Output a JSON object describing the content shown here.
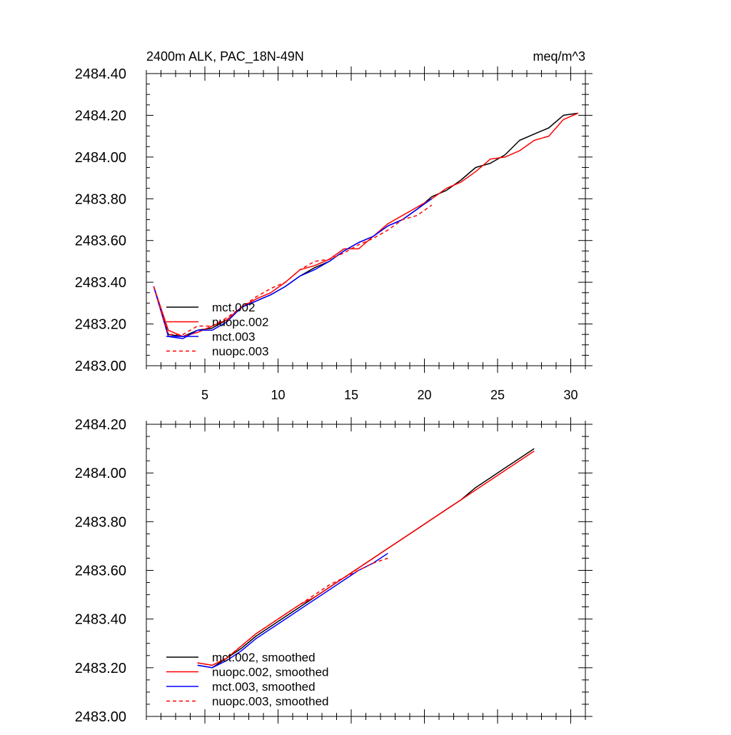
{
  "chart_data": [
    {
      "type": "line",
      "title": "2400m ALK, PAC_18N-49N",
      "units": "meq/m^3",
      "xlabel": "",
      "ylabel": "",
      "xlim": [
        1,
        31
      ],
      "ylim": [
        2483.0,
        2484.4
      ],
      "x_ticks": [
        5,
        10,
        15,
        20,
        25,
        30
      ],
      "y_ticks": [
        2483.0,
        2483.2,
        2483.4,
        2483.6,
        2483.8,
        2484.0,
        2484.2,
        2484.4
      ],
      "y_tick_labels": [
        "2483.00",
        "2483.20",
        "2483.40",
        "2483.60",
        "2483.80",
        "2484.00",
        "2484.20",
        "2484.40"
      ],
      "legend_position": "bottom-left",
      "series": [
        {
          "name": "mct.002",
          "color": "#000000",
          "dash": "solid",
          "x": [
            1.5,
            2.5,
            3.5,
            4.5,
            5.5,
            6.5,
            7.5,
            8.5,
            9.5,
            10.5,
            11.5,
            12.5,
            13.5,
            14.5,
            15.5,
            16.5,
            17.5,
            18.5,
            19.5,
            20.5,
            21.5,
            22.5,
            23.5,
            24.5,
            25.5,
            26.5,
            27.5,
            28.5,
            29.5,
            30.5
          ],
          "y": [
            2483.38,
            2483.15,
            2483.14,
            2483.17,
            2483.18,
            2483.22,
            2483.28,
            2483.31,
            2483.34,
            2483.38,
            2483.43,
            2483.47,
            2483.5,
            2483.55,
            2483.59,
            2483.62,
            2483.67,
            2483.7,
            2483.75,
            2483.81,
            2483.84,
            2483.89,
            2483.95,
            2483.97,
            2484.01,
            2484.08,
            2484.11,
            2484.14,
            2484.2,
            2484.21
          ]
        },
        {
          "name": "nuopc.002",
          "color": "#ff0000",
          "dash": "solid",
          "x": [
            1.5,
            2.5,
            3.5,
            4.5,
            5.5,
            6.5,
            7.5,
            8.5,
            9.5,
            10.5,
            11.5,
            12.5,
            13.5,
            14.5,
            15.5,
            16.5,
            17.5,
            18.5,
            19.5,
            20.5,
            21.5,
            22.5,
            23.5,
            24.5,
            25.5,
            26.5,
            27.5,
            28.5,
            29.5,
            30.5
          ],
          "y": [
            2483.38,
            2483.17,
            2483.14,
            2483.16,
            2483.19,
            2483.22,
            2483.28,
            2483.32,
            2483.35,
            2483.4,
            2483.46,
            2483.48,
            2483.51,
            2483.56,
            2483.56,
            2483.62,
            2483.68,
            2483.72,
            2483.76,
            2483.8,
            2483.85,
            2483.88,
            2483.93,
            2483.99,
            2484.0,
            2484.03,
            2484.08,
            2484.1,
            2484.18,
            2484.21
          ]
        },
        {
          "name": "mct.003",
          "color": "#0000ff",
          "dash": "solid",
          "x": [
            1.5,
            2.5,
            3.5,
            4.5,
            5.5,
            6.5,
            7.5,
            8.5,
            9.5,
            10.5,
            11.5,
            12.5,
            13.5,
            14.5,
            15.5,
            16.5,
            17.5,
            18.5,
            19.5,
            20.5
          ],
          "y": [
            2483.38,
            2483.14,
            2483.13,
            2483.17,
            2483.17,
            2483.21,
            2483.28,
            2483.31,
            2483.34,
            2483.38,
            2483.43,
            2483.46,
            2483.5,
            2483.55,
            2483.59,
            2483.62,
            2483.67,
            2483.7,
            2483.75,
            2483.8
          ]
        },
        {
          "name": "nuopc.003",
          "color": "#ff0000",
          "dash": "dashed",
          "x": [
            1.5,
            2.5,
            3.5,
            4.5,
            5.5,
            6.5,
            7.5,
            8.5,
            9.5,
            10.5,
            11.5,
            12.5,
            13.5,
            14.5,
            15.5,
            16.5,
            17.5,
            18.5,
            19.5,
            20.5
          ],
          "y": [
            2483.38,
            2483.15,
            2483.15,
            2483.19,
            2483.19,
            2483.23,
            2483.28,
            2483.33,
            2483.37,
            2483.4,
            2483.46,
            2483.5,
            2483.51,
            2483.54,
            2483.58,
            2483.61,
            2483.65,
            2483.7,
            2483.72,
            2483.77
          ]
        }
      ]
    },
    {
      "type": "line",
      "title": "",
      "xlabel": "",
      "ylabel": "",
      "xlim": [
        1,
        31
      ],
      "ylim": [
        2483.0,
        2484.2
      ],
      "x_ticks": [
        5,
        10,
        15,
        20,
        25,
        30
      ],
      "y_ticks": [
        2483.0,
        2483.2,
        2483.4,
        2483.6,
        2483.8,
        2484.0,
        2484.2
      ],
      "y_tick_labels": [
        "2483.00",
        "2483.20",
        "2483.40",
        "2483.60",
        "2483.80",
        "2484.00",
        "2484.20"
      ],
      "legend_position": "bottom-left",
      "series": [
        {
          "name": "mct.002, smoothed",
          "color": "#000000",
          "dash": "solid",
          "x": [
            4.5,
            5.5,
            6.5,
            7.5,
            8.5,
            9.5,
            10.5,
            11.5,
            12.5,
            13.5,
            14.5,
            15.5,
            16.5,
            17.5,
            18.5,
            19.5,
            20.5,
            21.5,
            22.5,
            23.5,
            24.5,
            25.5,
            26.5,
            27.5
          ],
          "y": [
            2483.21,
            2483.2,
            2483.24,
            2483.28,
            2483.33,
            2483.37,
            2483.41,
            2483.45,
            2483.49,
            2483.53,
            2483.57,
            2483.61,
            2483.65,
            2483.69,
            2483.73,
            2483.77,
            2483.81,
            2483.85,
            2483.89,
            2483.94,
            2483.98,
            2484.02,
            2484.06,
            2484.1
          ]
        },
        {
          "name": "nuopc.002, smoothed",
          "color": "#ff0000",
          "dash": "solid",
          "x": [
            4.5,
            5.5,
            6.5,
            7.5,
            8.5,
            9.5,
            10.5,
            11.5,
            12.5,
            13.5,
            14.5,
            15.5,
            16.5,
            17.5,
            18.5,
            19.5,
            20.5,
            21.5,
            22.5,
            23.5,
            24.5,
            25.5,
            26.5,
            27.5
          ],
          "y": [
            2483.22,
            2483.21,
            2483.24,
            2483.29,
            2483.34,
            2483.38,
            2483.42,
            2483.46,
            2483.49,
            2483.53,
            2483.57,
            2483.61,
            2483.65,
            2483.69,
            2483.73,
            2483.77,
            2483.81,
            2483.85,
            2483.89,
            2483.93,
            2483.97,
            2484.01,
            2484.05,
            2484.09
          ]
        },
        {
          "name": "mct.003, smoothed",
          "color": "#0000ff",
          "dash": "solid",
          "x": [
            4.5,
            5.5,
            6.5,
            7.5,
            8.5,
            9.5,
            10.5,
            11.5,
            12.5,
            13.5,
            14.5,
            15.5,
            16.5,
            17.5
          ],
          "y": [
            2483.21,
            2483.2,
            2483.23,
            2483.27,
            2483.32,
            2483.36,
            2483.4,
            2483.44,
            2483.48,
            2483.52,
            2483.56,
            2483.6,
            2483.63,
            2483.67
          ]
        },
        {
          "name": "nuopc.003, smoothed",
          "color": "#ff0000",
          "dash": "dashed",
          "x": [
            4.5,
            5.5,
            6.5,
            7.5,
            8.5,
            9.5,
            10.5,
            11.5,
            12.5,
            13.5,
            14.5,
            15.5,
            16.5,
            17.5
          ],
          "y": [
            2483.22,
            2483.21,
            2483.24,
            2483.29,
            2483.34,
            2483.38,
            2483.42,
            2483.46,
            2483.5,
            2483.54,
            2483.57,
            2483.6,
            2483.63,
            2483.65
          ]
        }
      ]
    }
  ]
}
